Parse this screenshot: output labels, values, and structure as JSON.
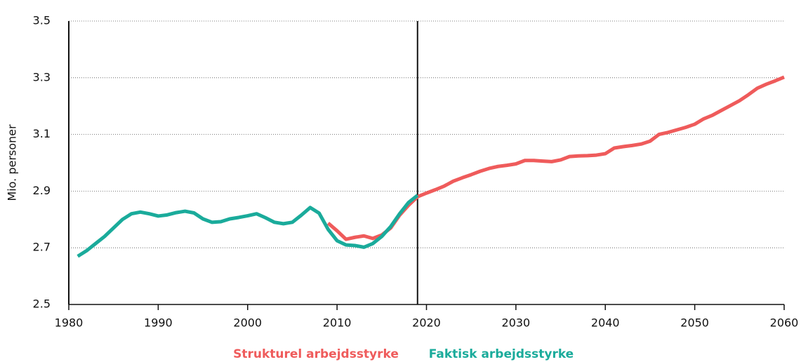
{
  "chart_data": {
    "type": "line",
    "y_label": "Mio. personer",
    "xlim": [
      1980,
      2060
    ],
    "xticks": [
      1980,
      1990,
      2000,
      2010,
      2020,
      2030,
      2040,
      2050,
      2060
    ],
    "ylim": [
      2.5,
      3.5
    ],
    "yticks": [
      2.5,
      2.7,
      2.9,
      3.1,
      3.3,
      3.5
    ],
    "grid": true,
    "vline": 2019,
    "legend": "bottom",
    "series": [
      {
        "name": "Strukturel arbejdsstyrke",
        "color": "#ef5b5b",
        "x": [
          2009,
          2010,
          2011,
          2012,
          2013,
          2014,
          2015,
          2016,
          2017,
          2018,
          2019,
          2020,
          2021,
          2022,
          2023,
          2024,
          2025,
          2026,
          2027,
          2028,
          2029,
          2030,
          2031,
          2032,
          2033,
          2034,
          2035,
          2036,
          2037,
          2038,
          2039,
          2040,
          2041,
          2042,
          2043,
          2044,
          2045,
          2046,
          2047,
          2048,
          2049,
          2050,
          2051,
          2052,
          2053,
          2054,
          2055,
          2056,
          2057,
          2058,
          2059,
          2060
        ],
        "values": [
          2.787,
          2.76,
          2.73,
          2.737,
          2.742,
          2.733,
          2.745,
          2.77,
          2.815,
          2.85,
          2.88,
          2.893,
          2.905,
          2.918,
          2.935,
          2.947,
          2.958,
          2.97,
          2.98,
          2.987,
          2.991,
          2.996,
          3.008,
          3.008,
          3.006,
          3.004,
          3.01,
          3.022,
          3.024,
          3.025,
          3.027,
          3.032,
          3.052,
          3.057,
          3.061,
          3.066,
          3.076,
          3.1,
          3.107,
          3.116,
          3.125,
          3.136,
          3.155,
          3.168,
          3.185,
          3.202,
          3.219,
          3.24,
          3.263,
          3.277,
          3.289,
          3.302
        ]
      },
      {
        "name": "Faktisk arbejdsstyrke",
        "color": "#1aab9b",
        "x": [
          1981,
          1982,
          1983,
          1984,
          1985,
          1986,
          1987,
          1988,
          1989,
          1990,
          1991,
          1992,
          1993,
          1994,
          1995,
          1996,
          1997,
          1998,
          1999,
          2000,
          2001,
          2002,
          2003,
          2004,
          2005,
          2006,
          2007,
          2008,
          2009,
          2010,
          2011,
          2012,
          2013,
          2014,
          2015,
          2016,
          2017,
          2018,
          2019
        ],
        "values": [
          2.67,
          2.69,
          2.715,
          2.74,
          2.77,
          2.8,
          2.82,
          2.826,
          2.82,
          2.812,
          2.816,
          2.824,
          2.829,
          2.823,
          2.802,
          2.79,
          2.792,
          2.802,
          2.807,
          2.813,
          2.82,
          2.806,
          2.79,
          2.785,
          2.79,
          2.815,
          2.842,
          2.822,
          2.765,
          2.725,
          2.71,
          2.708,
          2.702,
          2.715,
          2.74,
          2.775,
          2.82,
          2.86,
          2.885
        ]
      }
    ]
  }
}
